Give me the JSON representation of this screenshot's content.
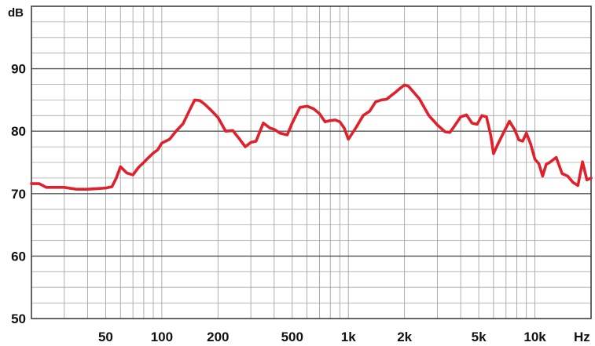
{
  "chart_data": {
    "type": "line",
    "x_scale": "log",
    "xlim": [
      20,
      20000
    ],
    "ylim": [
      50,
      100
    ],
    "grid": true,
    "y_unit": "dB",
    "x_unit": "Hz",
    "x_tick_values": [
      50,
      100,
      200,
      500,
      1000,
      2000,
      5000,
      10000
    ],
    "x_tick_labels": [
      "50",
      "100",
      "200",
      "500",
      "1k",
      "2k",
      "5k",
      "10k"
    ],
    "y_tick_values": [
      50,
      60,
      70,
      80,
      90
    ],
    "y_tick_labels": [
      "50",
      "60",
      "70",
      "80",
      "90"
    ],
    "line_color": "#e0202a",
    "series": [
      {
        "x": [
          20,
          22,
          24,
          30,
          35,
          40,
          45,
          50,
          54,
          57,
          60,
          65,
          70,
          75,
          80,
          85,
          90,
          95,
          100,
          110,
          120,
          130,
          140,
          150,
          160,
          170,
          180,
          200,
          220,
          240,
          260,
          280,
          300,
          320,
          350,
          380,
          400,
          430,
          470,
          500,
          550,
          600,
          650,
          700,
          750,
          800,
          850,
          900,
          950,
          1000,
          1100,
          1200,
          1300,
          1400,
          1500,
          1600,
          1800,
          1900,
          2000,
          2100,
          2200,
          2400,
          2700,
          3000,
          3300,
          3500,
          3700,
          4000,
          4300,
          4600,
          4900,
          5200,
          5500,
          5800,
          6000,
          6300,
          6800,
          7300,
          7800,
          8200,
          8600,
          9000,
          9500,
          10000,
          10500,
          11000,
          11500,
          12000,
          13000,
          14000,
          15000,
          16000,
          17000,
          18000,
          19000,
          20000
        ],
        "y": [
          71.6,
          71.6,
          71.0,
          71.0,
          70.7,
          70.7,
          70.8,
          70.9,
          71.1,
          72.5,
          74.3,
          73.3,
          73.0,
          74.2,
          75.0,
          75.8,
          76.5,
          77.0,
          78.1,
          78.7,
          80.1,
          81.2,
          83.2,
          85.0,
          84.9,
          84.3,
          83.6,
          82.2,
          80.0,
          80.1,
          78.8,
          77.5,
          78.2,
          78.4,
          81.3,
          80.5,
          80.3,
          79.7,
          79.4,
          81.3,
          83.8,
          84.0,
          83.6,
          82.8,
          81.5,
          81.7,
          81.8,
          81.5,
          80.5,
          78.7,
          80.6,
          82.5,
          83.2,
          84.7,
          85.0,
          85.1,
          86.3,
          86.9,
          87.4,
          87.2,
          86.5,
          85.2,
          82.5,
          81.0,
          79.9,
          79.8,
          80.8,
          82.3,
          82.6,
          81.3,
          81.1,
          82.5,
          82.3,
          79.3,
          76.4,
          77.8,
          79.8,
          81.6,
          80.2,
          78.6,
          78.4,
          79.7,
          77.9,
          75.5,
          74.8,
          72.8,
          74.7,
          75.0,
          75.8,
          73.2,
          72.8,
          71.8,
          71.3,
          75.1,
          72.2,
          72.5
        ]
      }
    ]
  }
}
